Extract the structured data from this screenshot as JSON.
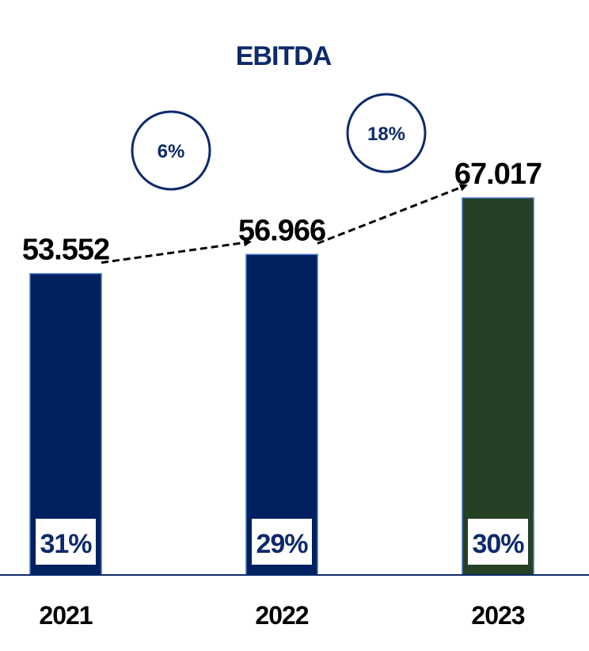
{
  "chart_data": {
    "type": "bar",
    "title": "EBITDA",
    "categories": [
      "2021",
      "2022",
      "2023"
    ],
    "values": [
      53552,
      56966,
      67017
    ],
    "value_labels": [
      "53.552",
      "56.966",
      "67.017"
    ],
    "margin_labels": [
      "31%",
      "29%",
      "30%"
    ],
    "growth_labels": [
      "6%",
      "18%"
    ],
    "bar_colors": [
      "#002060",
      "#002060",
      "#264025"
    ],
    "ylim": [
      0,
      82500
    ],
    "grid": false,
    "legend": "none"
  }
}
